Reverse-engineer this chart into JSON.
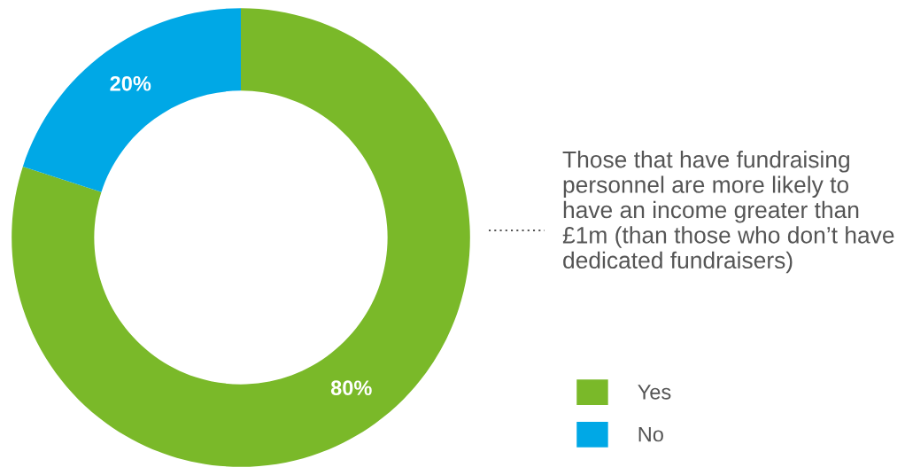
{
  "chart_data": {
    "type": "donut",
    "categories": [
      "Yes",
      "No"
    ],
    "values": [
      80,
      20
    ],
    "colors": [
      "#7ab929",
      "#00a8e6"
    ],
    "value_labels": [
      "80%",
      "20%"
    ],
    "legend": "bottom right",
    "annotations": [
      "Those that have fundraising personnel are more likely to have an income greater than £1m (than those who don’t have dedicated fundraisers)"
    ]
  }
}
